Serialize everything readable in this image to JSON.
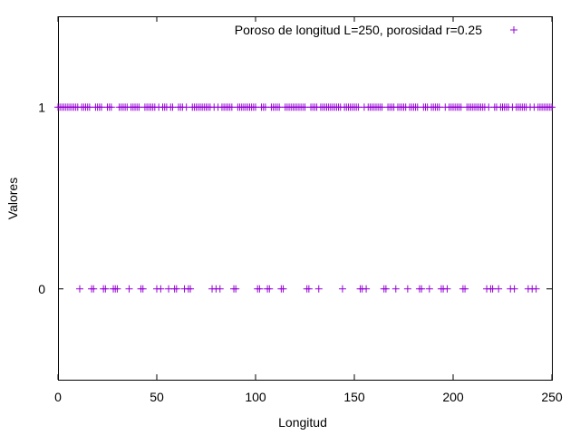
{
  "chart_data": {
    "type": "scatter",
    "title": "",
    "xlabel": "Longitud",
    "ylabel": "Valores",
    "xlim": [
      0,
      250
    ],
    "ylim": [
      -0.5,
      1.5
    ],
    "x_ticks": [
      0,
      50,
      100,
      150,
      200,
      250
    ],
    "y_ticks": [
      0,
      1
    ],
    "grid": false,
    "legend_position": "top-right",
    "marker": "+",
    "color": "#9400d3",
    "series": [
      {
        "name": "Poroso de longitud L=250, porosidad r=0.25",
        "zero_positions": [
          11,
          17,
          18,
          23,
          24,
          28,
          29,
          30,
          36,
          42,
          43,
          50,
          52,
          56,
          59,
          60,
          64,
          66,
          67,
          78,
          80,
          82,
          89,
          90,
          101,
          102,
          106,
          107,
          113,
          114,
          126,
          127,
          132,
          144,
          153,
          154,
          156,
          165,
          166,
          171,
          177,
          183,
          184,
          188,
          194,
          195,
          197,
          205,
          206,
          217,
          219,
          220,
          223,
          229,
          231,
          238,
          240,
          242
        ]
      }
    ]
  }
}
